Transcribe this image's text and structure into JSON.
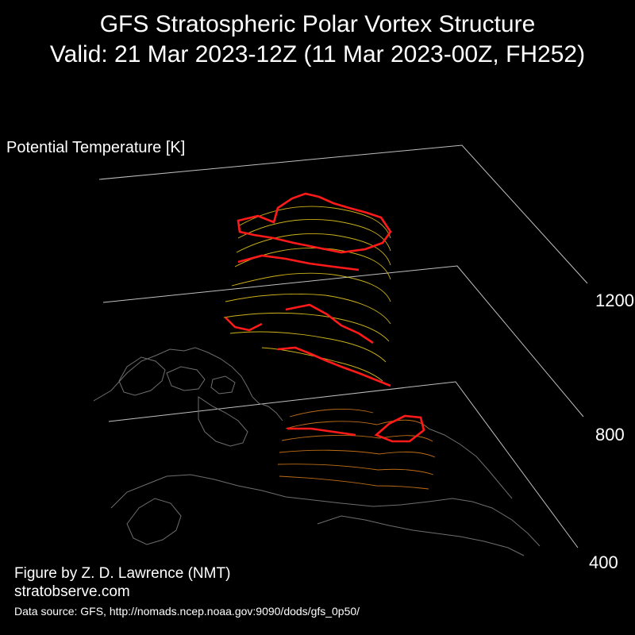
{
  "title": {
    "line1": "GFS Stratospheric Polar Vortex Structure",
    "line2": "Valid: 21 Mar 2023-12Z  (11 Mar 2023-00Z, FH252)"
  },
  "axis": {
    "label": "Potential Temperature [K]",
    "levels": [
      "1200",
      "800",
      "400"
    ]
  },
  "credits": {
    "author": "Figure by Z. D. Lawrence (NMT)",
    "site": "stratobserve.com",
    "source": "Data source: GFS, http://nomads.ncep.noaa.gov:9090/dods/gfs_0p50/"
  },
  "colors": {
    "background": "#000000",
    "plane_lines": "#bfbfbf",
    "coastline": "#6e6e6e",
    "edge_contour": "#ff1a1a",
    "upper_vortex": "#f2d21e",
    "lower_vortex": "#e0801a"
  }
}
